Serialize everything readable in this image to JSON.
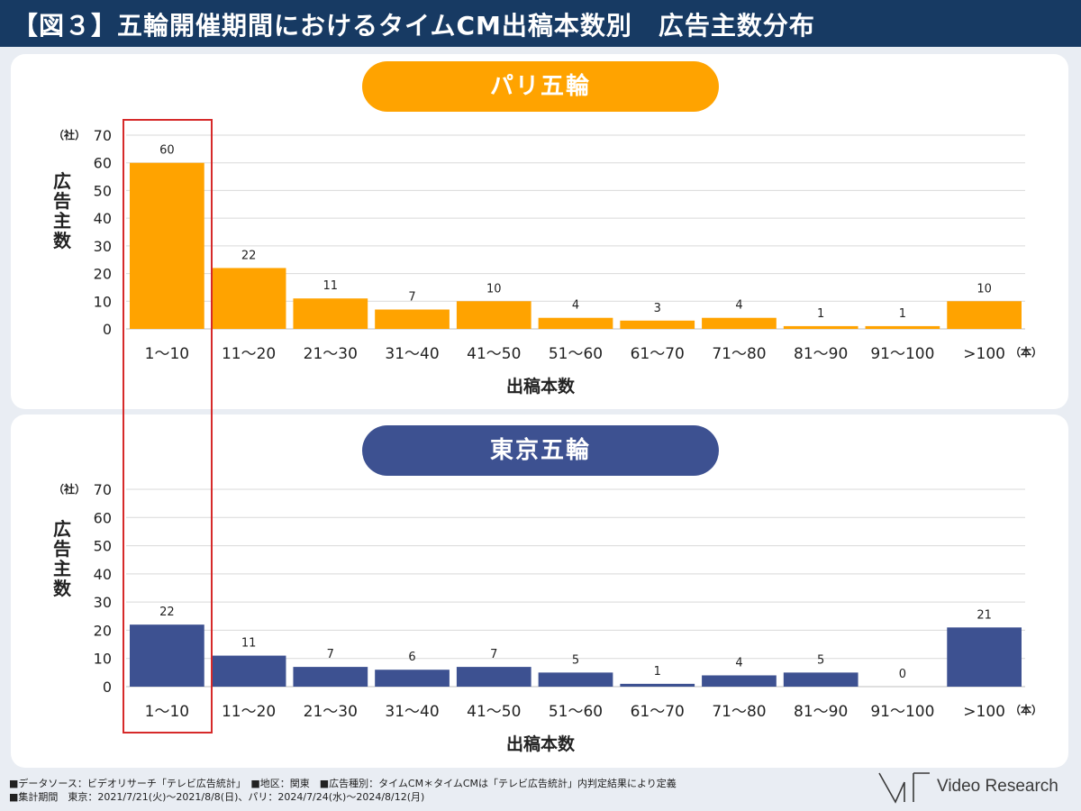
{
  "header": {
    "title": "【図３】五輪開催期間におけるタイムCM出稿本数別　広告主数分布"
  },
  "colors": {
    "paris": "#ffa300",
    "tokyo": "#3d5191",
    "highlight": "#d62a2a",
    "header_bg": "#173a63"
  },
  "chart_data": [
    {
      "type": "bar",
      "title": "パリ五輪",
      "categories": [
        "1～10",
        "11～20",
        "21～30",
        "31～40",
        "41～50",
        "51～60",
        "61～70",
        "71～80",
        "81～90",
        "91～100",
        ">100"
      ],
      "values": [
        60,
        22,
        11,
        7,
        10,
        4,
        3,
        4,
        1,
        1,
        10
      ],
      "ylim": [
        0,
        70
      ],
      "yticks": [
        "0",
        "10",
        "20",
        "30",
        "40",
        "50",
        "60",
        "70"
      ],
      "yunit": "（社）",
      "xunit": "（本）",
      "ylabel": "広告主数",
      "xlabel": "出稿本数",
      "grid": true
    },
    {
      "type": "bar",
      "title": "東京五輪",
      "categories": [
        "1～10",
        "11～20",
        "21～30",
        "31～40",
        "41～50",
        "51～60",
        "61～70",
        "71～80",
        "81～90",
        "91～100",
        ">100"
      ],
      "values": [
        22,
        11,
        7,
        6,
        7,
        5,
        1,
        4,
        5,
        0,
        21
      ],
      "ylim": [
        0,
        70
      ],
      "yticks": [
        "0",
        "10",
        "20",
        "30",
        "40",
        "50",
        "60",
        "70"
      ],
      "yunit": "（社）",
      "xunit": "（本）",
      "ylabel": "広告主数",
      "xlabel": "出稿本数",
      "grid": true
    }
  ],
  "footer": {
    "line1": "■データソース：ビデオリサーチ「テレビ広告統計」　■地区：関東　■広告種別：タイムCM＊タイムCMは「テレビ広告統計」内判定結果により定義",
    "line2": "■集計期間　東京：2021/7/21(火)～2021/8/8(日)、パリ：2024/7/24(水)～2024/8/12(月)"
  },
  "logo": {
    "text": "Video Research"
  }
}
